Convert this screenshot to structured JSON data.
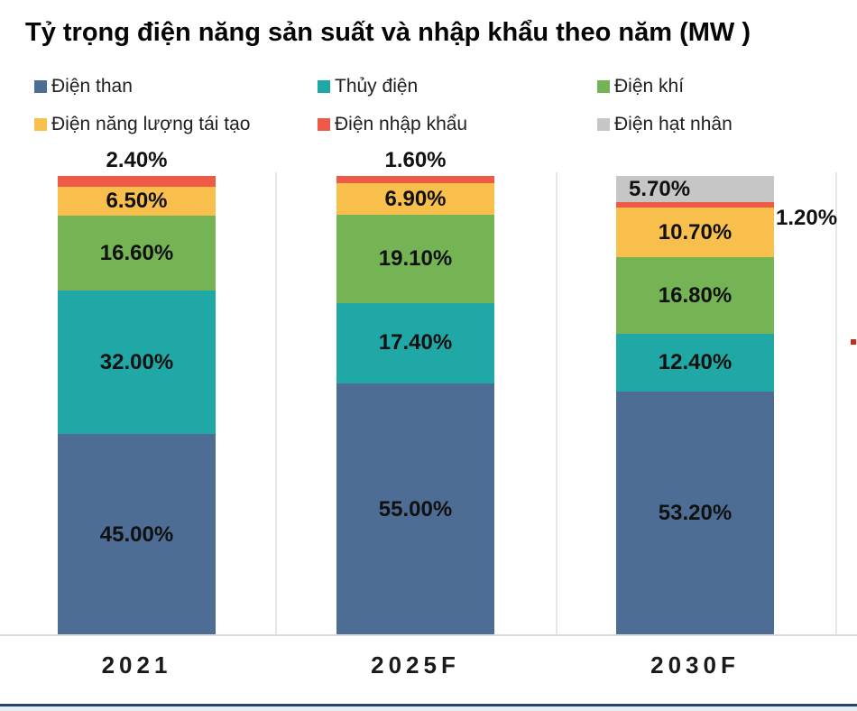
{
  "title": "Tỷ trọng điện năng sản suất và nhập khẩu theo năm (MW )",
  "chart_data": {
    "type": "bar",
    "stacked": true,
    "title": "Tỷ trọng điện năng sản suất và nhập khẩu theo năm (MW )",
    "categories": [
      "2021",
      "2025F",
      "2030F"
    ],
    "series": [
      {
        "name": "Điện than",
        "key": "coal",
        "color": "#4d6d94",
        "values": [
          45.0,
          55.0,
          53.2
        ]
      },
      {
        "name": "Thủy điện",
        "key": "hydro",
        "color": "#1fa8a6",
        "values": [
          32.0,
          17.4,
          12.4
        ]
      },
      {
        "name": "Điện khí",
        "key": "gas",
        "color": "#75b455",
        "values": [
          16.6,
          19.1,
          16.8
        ]
      },
      {
        "name": "Điện  năng lượng tái tạo",
        "key": "renewable",
        "color": "#f9bf4d",
        "values": [
          6.5,
          6.9,
          10.7
        ]
      },
      {
        "name": "Điện nhập khẩu",
        "key": "import",
        "color": "#ef5a47",
        "values": [
          2.4,
          1.6,
          1.2
        ]
      },
      {
        "name": "Điện hạt nhân",
        "key": "nuclear",
        "color": "#c6c6c6",
        "values": [
          0,
          0,
          5.7
        ]
      }
    ],
    "data_labels": [
      "45.00%",
      "32.00%",
      "16.60%",
      "6.50%",
      "2.40%",
      "55.00%",
      "17.40%",
      "19.10%",
      "6.90%",
      "1.60%",
      "53.20%",
      "12.40%",
      "16.80%",
      "10.70%",
      "1.20%",
      "5.70%"
    ],
    "label_placement_overrides": {
      "import": [
        "above",
        "above",
        "right-outside"
      ],
      "nuclear": [
        null,
        null,
        "inside-left"
      ]
    },
    "value_format": "0.00'%'",
    "ylim": [
      0,
      100
    ],
    "grid": false,
    "legend_position": "top"
  },
  "colors": {
    "title_text": "#050505",
    "data_label_text": "#111111",
    "axis_text": "#1a1a1a",
    "category_separator": "#e7e7e7",
    "baseline": "#dcdcdc",
    "bottom_rule": "#26436b",
    "accent_dot": "#c42b1c"
  }
}
